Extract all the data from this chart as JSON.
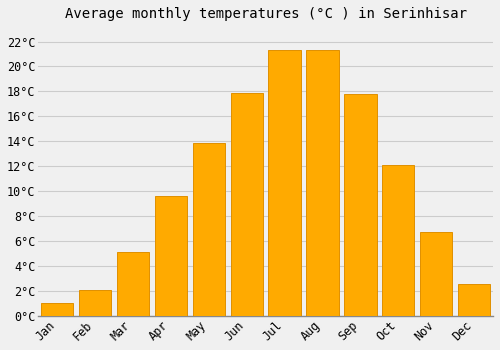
{
  "title": "Average monthly temperatures (°C ) in Serinhisar",
  "months": [
    "Jan",
    "Feb",
    "Mar",
    "Apr",
    "May",
    "Jun",
    "Jul",
    "Aug",
    "Sep",
    "Oct",
    "Nov",
    "Dec"
  ],
  "temperatures": [
    1.0,
    2.1,
    5.1,
    9.6,
    13.9,
    17.9,
    21.3,
    21.3,
    17.8,
    12.1,
    6.7,
    2.6
  ],
  "bar_color": "#FFAA00",
  "bar_edge_color": "#E09000",
  "background_color": "#F0F0F0",
  "grid_color": "#CCCCCC",
  "ylim": [
    0,
    23
  ],
  "yticks": [
    0,
    2,
    4,
    6,
    8,
    10,
    12,
    14,
    16,
    18,
    20,
    22
  ],
  "title_fontsize": 10,
  "tick_fontsize": 8.5,
  "figsize": [
    5.0,
    3.5
  ],
  "dpi": 100
}
